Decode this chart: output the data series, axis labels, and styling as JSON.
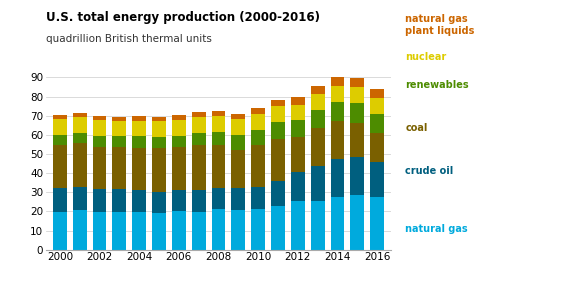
{
  "years": [
    2000,
    2001,
    2002,
    2003,
    2004,
    2005,
    2006,
    2007,
    2008,
    2009,
    2010,
    2011,
    2012,
    2013,
    2014,
    2015,
    2016
  ],
  "natural_gas": [
    19.7,
    20.6,
    19.5,
    19.8,
    19.5,
    19.1,
    20.0,
    19.8,
    21.1,
    20.6,
    21.4,
    23.0,
    25.3,
    25.6,
    27.5,
    28.8,
    27.5
  ],
  "crude_oil": [
    12.4,
    12.3,
    12.3,
    12.0,
    11.9,
    11.2,
    11.0,
    11.3,
    11.1,
    11.7,
    11.5,
    13.0,
    15.2,
    18.0,
    19.9,
    19.7,
    18.5
  ],
  "coal": [
    22.7,
    22.8,
    21.9,
    21.8,
    22.0,
    22.8,
    22.5,
    23.5,
    22.4,
    19.7,
    21.8,
    21.6,
    18.3,
    20.0,
    19.9,
    17.9,
    14.9
  ],
  "renewables": [
    5.3,
    5.4,
    5.9,
    5.8,
    5.9,
    5.8,
    6.1,
    6.5,
    6.8,
    7.8,
    7.9,
    9.1,
    9.0,
    9.3,
    9.8,
    10.1,
    10.2
  ],
  "nuclear": [
    8.0,
    8.0,
    8.1,
    7.9,
    8.2,
    8.2,
    8.2,
    8.5,
    8.5,
    8.4,
    8.4,
    8.3,
    8.0,
    8.3,
    8.3,
    8.3,
    8.4
  ],
  "plant_liquids": [
    2.4,
    2.4,
    2.3,
    2.3,
    2.3,
    2.3,
    2.4,
    2.5,
    2.6,
    2.6,
    2.9,
    3.3,
    3.9,
    4.3,
    5.0,
    5.0,
    4.6
  ],
  "colors": {
    "natural_gas": "#00aadd",
    "crude_oil": "#005f7f",
    "coal": "#7a6000",
    "renewables": "#4d8c00",
    "nuclear": "#ddcc00",
    "plant_liquids": "#cc6600"
  },
  "title": "U.S. total energy production (2000-2016)",
  "subtitle": "quadrillion British thermal units",
  "ylim": [
    0,
    90
  ],
  "yticks": [
    0,
    10,
    20,
    30,
    40,
    50,
    60,
    70,
    80,
    90
  ],
  "xticks": [
    2000,
    2002,
    2004,
    2006,
    2008,
    2010,
    2012,
    2014,
    2016
  ],
  "background_color": "#ffffff"
}
